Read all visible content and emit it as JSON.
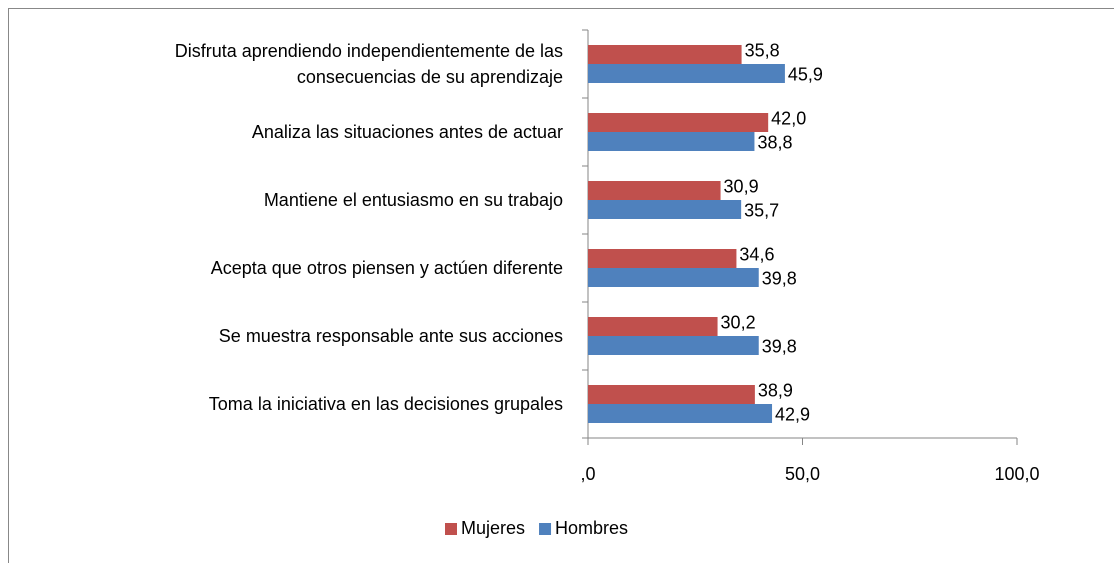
{
  "chart_data": {
    "type": "bar",
    "orientation": "horizontal",
    "categories": [
      "Disfruta aprendiendo independientemente de las\nconsecuencias de su aprendizaje",
      "Analiza las situaciones antes de actuar",
      "Mantiene el entusiasmo en su trabajo",
      "Acepta que otros piensen y actúen diferente",
      "Se muestra responsable ante sus acciones",
      "Toma la iniciativa en las decisiones grupales"
    ],
    "series": [
      {
        "name": "Mujeres",
        "color": "#c0504d",
        "values": [
          35.8,
          42.0,
          30.9,
          34.6,
          30.2,
          38.9
        ],
        "value_labels": [
          "35,8",
          "42,0",
          "30,9",
          "34,6",
          "30,2",
          "38,9"
        ]
      },
      {
        "name": "Hombres",
        "color": "#4f81bd",
        "values": [
          45.9,
          38.8,
          35.7,
          39.8,
          39.8,
          42.9
        ],
        "value_labels": [
          "45,9",
          "38,8",
          "35,7",
          "39,8",
          "39,8",
          "42,9"
        ]
      }
    ],
    "xlim": [
      0,
      100
    ],
    "xticks": [
      {
        "value": 0,
        "label": ",0"
      },
      {
        "value": 50,
        "label": "50,0"
      },
      {
        "value": 100,
        "label": "100,0"
      }
    ],
    "legend": "bottom"
  }
}
